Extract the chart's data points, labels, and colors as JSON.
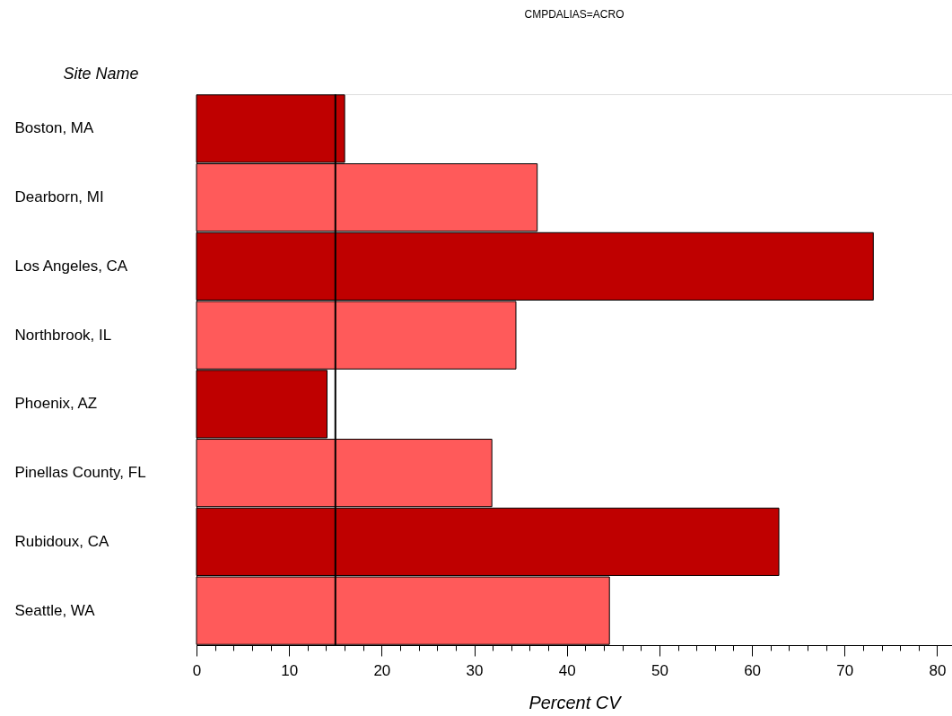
{
  "chart_data": {
    "type": "bar",
    "orientation": "horizontal",
    "title": "CMPDALIAS=ACRO",
    "ylabel": "Site Name",
    "xlabel": "Percent CV",
    "categories": [
      "Boston, MA",
      "Dearborn, MI",
      "Los Angeles, CA",
      "Northbrook, IL",
      "Phoenix, AZ",
      "Pinellas County, FL",
      "Rubidoux, CA",
      "Seattle, WA"
    ],
    "values": [
      16.0,
      36.8,
      73.1,
      34.5,
      14.1,
      31.9,
      62.9,
      44.6
    ],
    "colors": [
      "#bf0000",
      "#ff5a5a",
      "#bf0000",
      "#ff5a5a",
      "#bf0000",
      "#ff5a5a",
      "#bf0000",
      "#ff5a5a"
    ],
    "xlim": [
      0,
      81.6
    ],
    "xticks": [
      0,
      {
        "value": 2,
        "label": null
      },
      {
        "value": 4,
        "label": null
      },
      {
        "value": 6,
        "label": null
      },
      {
        "value": 8,
        "label": null
      },
      10,
      {
        "value": 12,
        "label": null
      },
      {
        "value": 14,
        "label": null
      },
      {
        "value": 16,
        "label": null
      },
      {
        "value": 18,
        "label": null
      },
      20,
      {
        "value": 22,
        "label": null
      },
      {
        "value": 24,
        "label": null
      },
      {
        "value": 26,
        "label": null
      },
      {
        "value": 28,
        "label": null
      },
      30,
      {
        "value": 32,
        "label": null
      },
      {
        "value": 34,
        "label": null
      },
      {
        "value": 36,
        "label": null
      },
      {
        "value": 38,
        "label": null
      },
      40,
      {
        "value": 42,
        "label": null
      },
      {
        "value": 44,
        "label": null
      },
      {
        "value": 46,
        "label": null
      },
      {
        "value": 48,
        "label": null
      },
      50,
      {
        "value": 52,
        "label": null
      },
      {
        "value": 54,
        "label": null
      },
      {
        "value": 56,
        "label": null
      },
      {
        "value": 58,
        "label": null
      },
      60,
      {
        "value": 62,
        "label": null
      },
      {
        "value": 64,
        "label": null
      },
      {
        "value": 66,
        "label": null
      },
      {
        "value": 68,
        "label": null
      },
      70,
      {
        "value": 72,
        "label": null
      },
      {
        "value": 74,
        "label": null
      },
      {
        "value": 76,
        "label": null
      },
      {
        "value": 78,
        "label": null
      },
      80
    ],
    "ref_lines": [
      {
        "axis": "x",
        "value": 15,
        "color": "#000000"
      }
    ],
    "grid": false
  }
}
